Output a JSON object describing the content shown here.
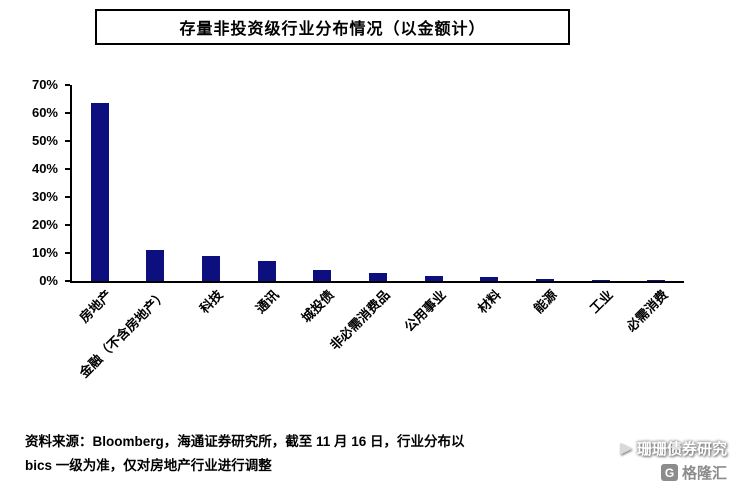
{
  "page": {
    "title": "存量非投资级行业分布情况（以金额计）"
  },
  "colors": {
    "bar": "#0d0f7e",
    "axis": "#000000"
  },
  "chart_data": {
    "type": "bar",
    "title": "存量非投资级行业分布情况（以金额计）",
    "categories": [
      "房地产",
      "金融（不含房地产）",
      "科技",
      "通讯",
      "城投债",
      "非必需消费品",
      "公用事业",
      "材料",
      "能源",
      "工业",
      "必需消费"
    ],
    "values": [
      63.5,
      11,
      9,
      7,
      4,
      2.8,
      1.8,
      1.4,
      0.8,
      0.5,
      0.4
    ],
    "unit": "%",
    "xlabel": "",
    "ylabel": "",
    "ylim": [
      0,
      70
    ],
    "ytick_step": 10,
    "yticks": [
      "0%",
      "10%",
      "20%",
      "30%",
      "40%",
      "50%",
      "60%",
      "70%"
    ],
    "grid": false,
    "legend": "none"
  },
  "source": {
    "line1": "资料来源：Bloomberg，海通证券研究所，截至 11 月 16 日，行业分布以",
    "line2": "bics 一级为准，仅对房地产行业进行调整"
  },
  "watermark": {
    "line1": "珊珊债券研究",
    "badge_letter": "G",
    "line2": "格隆汇"
  }
}
